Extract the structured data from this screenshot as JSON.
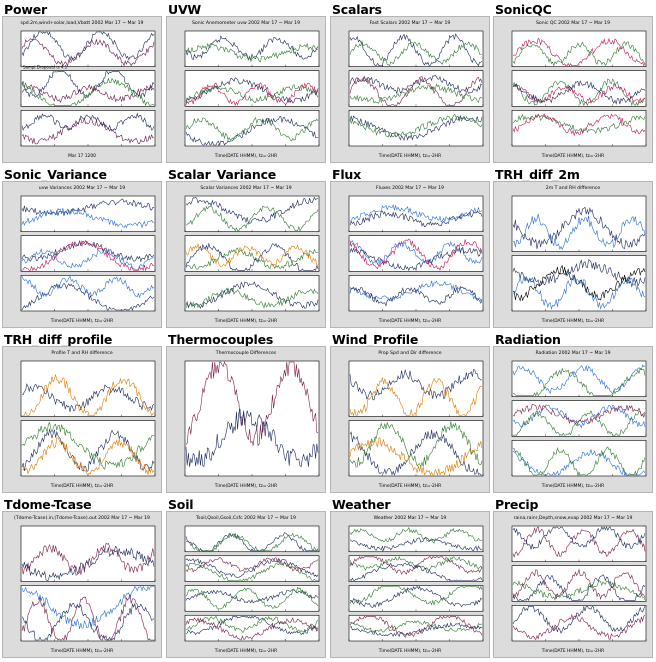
{
  "colors": {
    "background": "#dcdcdc",
    "panel": "#ffffff",
    "frame": "#000000"
  },
  "plots": [
    {
      "title": "Power",
      "subtitle": "spd.2m,wind+solar,load,Vbatt 2002 Mar 17 ~ Mar 19",
      "panels": 3,
      "palette": [
        "#1b2a5a",
        "#6a1b4d",
        "#2f7a2f"
      ],
      "xlabel": "Mar 17 1200",
      "note": "Sampl Dropouts is 4.1"
    },
    {
      "title": "UVW",
      "subtitle": "Sonic Anemometer uvw 2002 Mar 17 ~ Mar 19",
      "panels": 3,
      "palette": [
        "#1b2a5a",
        "#2f7a2f",
        "#c2185b",
        "#e07b00"
      ],
      "xlabel": "Time(DATE HHMM), tz=-2HR"
    },
    {
      "title": "Scalars",
      "subtitle": "Fast Scalars 2002 Mar 17 ~ Mar 19",
      "panels": 3,
      "palette": [
        "#1b2a5a",
        "#2f7a2f",
        "#7b1f4a",
        "#2a6fd6"
      ],
      "xlabel": "Time(DATE HHMM), tz=-2HR"
    },
    {
      "title": "SonicQC",
      "subtitle": "Sonic QC 2002 Mar 17 ~ Mar 19",
      "panels": 3,
      "palette": [
        "#2f7a2f",
        "#c2185b",
        "#1b2a5a"
      ],
      "xlabel": "Time(DATE HHMM), tz=-2HR"
    },
    {
      "title": "Sonic_Variance",
      "subtitle": "uvw Variances 2002 Mar 17 ~ Mar 19",
      "panels": 3,
      "palette": [
        "#1b2a5a",
        "#2a6fd6",
        "#c2185b",
        "#e07b00"
      ],
      "xlabel": "Time(DATE HHMM), tz=-2HR"
    },
    {
      "title": "Scalar_Variance",
      "subtitle": "Scalar Variances 2002 Mar 17 ~ Mar 19",
      "panels": 3,
      "palette": [
        "#1b2a5a",
        "#2f7a2f",
        "#e07b00",
        "#c2185b"
      ],
      "xlabel": "Time(DATE HHMM), tz=-2HR"
    },
    {
      "title": "Flux",
      "subtitle": "Fluxes 2002 Mar 17 ~ Mar 19",
      "panels": 3,
      "palette": [
        "#2a6fd6",
        "#1b2a5a",
        "#c2185b",
        "#e07b00"
      ],
      "xlabel": "Time(DATE HHMM), tz=-2HR"
    },
    {
      "title": "TRH_diff_2m",
      "subtitle": "2m T and RH difference",
      "panels": 2,
      "palette": [
        "#1b2a5a",
        "#2a6fd6",
        "#000000"
      ],
      "xlabel": "Time(DATE HHMM), tz=-2HR"
    },
    {
      "title": "TRH_diff_profile",
      "subtitle": "Profile T and RH difference",
      "panels": 2,
      "palette": [
        "#1b2a5a",
        "#e07b00",
        "#2f7a2f",
        "#555555"
      ],
      "xlabel": "Time(DATE HHMM), tz=-2HR"
    },
    {
      "title": "Thermocouples",
      "subtitle": "Thermocouple Differences",
      "panels": 1,
      "palette": [
        "#7b1f4a",
        "#1b2a5a",
        "#2a6fd6",
        "#2f7a2f",
        "#000000"
      ],
      "xlabel": "Time(DATE HHMM), tz=-2HR"
    },
    {
      "title": "Wind_Profile",
      "subtitle": "Prop Spd and Dir difference",
      "panels": 2,
      "palette": [
        "#1b2a5a",
        "#e07b00",
        "#2f7a2f",
        "#555555"
      ],
      "xlabel": "Time(DATE HHMM), tz=-2HR"
    },
    {
      "title": "Radiation",
      "subtitle": "Radiation 2002 Mar 17 ~ Mar 19",
      "panels": 3,
      "palette": [
        "#2a6fd6",
        "#2f7a2f",
        "#7b1f4a",
        "#e07b00"
      ],
      "xlabel": "Time(DATE HHMM), tz=-2HR"
    },
    {
      "title": "Tdome-Tcase",
      "subtitle": "(Tdome-Tcase).in,(Tdome-Tcase).out 2002 Mar 17 ~ Mar 19",
      "panels": 2,
      "palette": [
        "#7b1f4a",
        "#1b2a5a",
        "#2a6fd6"
      ],
      "xlabel": "Time(DATE HHMM), tz=-2HR"
    },
    {
      "title": "Soil",
      "subtitle": "Tsoil,Qsoil,Gsoil,Csfc 2002 Mar 17 ~ Mar 19",
      "panels": 4,
      "palette": [
        "#1b2a5a",
        "#2f7a2f",
        "#7b1f4a",
        "#555555"
      ],
      "xlabel": "Time(DATE HHMM), tz=-2HR"
    },
    {
      "title": "Weather",
      "subtitle": "Weather 2002 Mar 17 ~ Mar 19",
      "panels": 4,
      "palette": [
        "#2f7a2f",
        "#1b2a5a",
        "#7b1f4a",
        "#e07b00"
      ],
      "xlabel": "Time(DATE HHMM), tz=-2HR"
    },
    {
      "title": "Precip",
      "subtitle": "raina,rainr,Depth,snow,evap 2002 Mar 17 ~ Mar 19",
      "panels": 3,
      "palette": [
        "#7b1f4a",
        "#1b2a5a",
        "#2f7a2f",
        "#2a6fd6"
      ],
      "xlabel": "Time(DATE HHMM), tz=-2HR"
    }
  ]
}
